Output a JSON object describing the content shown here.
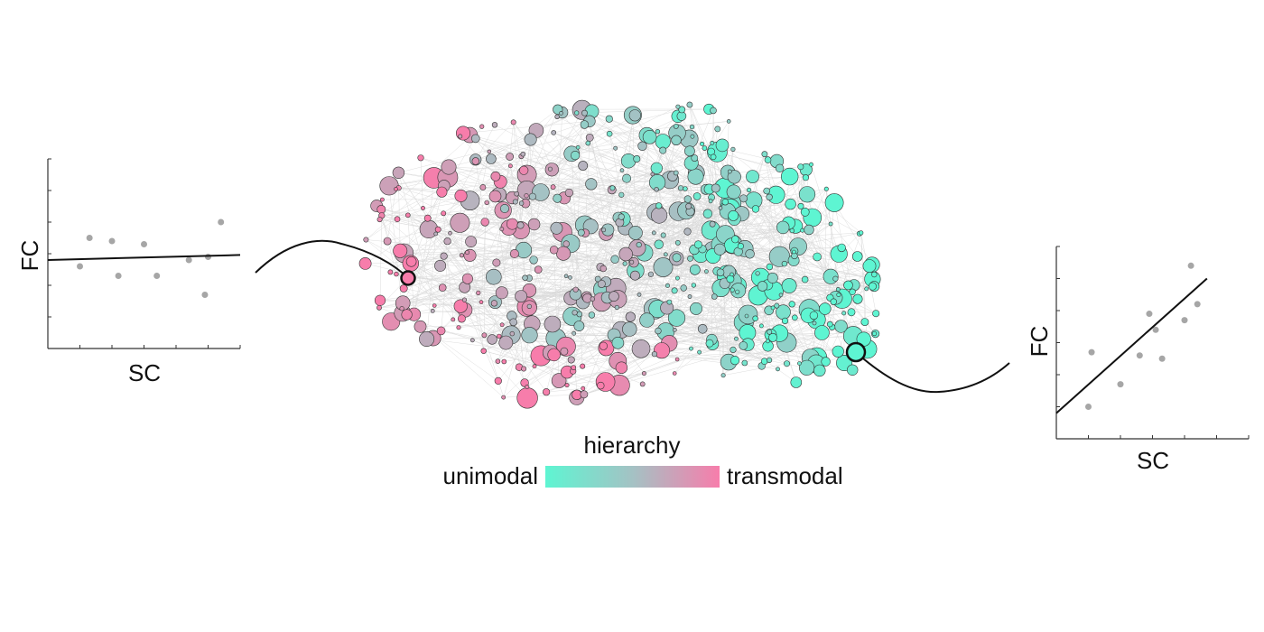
{
  "colors": {
    "unimodal": "#5ef5d2",
    "mid": "#a4c2c4",
    "transmodal": "#f77dab",
    "edge": "#d9d9d9",
    "scatter_point": "#a6a6a6",
    "line": "#111111"
  },
  "legend": {
    "title": "hierarchy",
    "left_label": "unimodal",
    "right_label": "transmodal"
  },
  "chart_data": [
    {
      "type": "scatter",
      "xlabel": "SC",
      "ylabel": "FC",
      "xlim": [
        0,
        6
      ],
      "ylim": [
        0,
        6
      ],
      "points": [
        [
          1.0,
          2.6
        ],
        [
          1.3,
          3.5
        ],
        [
          2.0,
          3.4
        ],
        [
          2.2,
          2.3
        ],
        [
          3.0,
          3.3
        ],
        [
          3.4,
          2.3
        ],
        [
          4.4,
          2.8
        ],
        [
          4.9,
          1.7
        ],
        [
          5.0,
          2.9
        ],
        [
          5.4,
          4.0
        ]
      ],
      "fit": {
        "x": [
          0,
          6
        ],
        "y": [
          2.8,
          2.96
        ]
      }
    },
    {
      "type": "scatter",
      "xlabel": "SC",
      "ylabel": "FC",
      "xlim": [
        0,
        6
      ],
      "ylim": [
        0,
        6
      ],
      "points": [
        [
          1.0,
          1.0
        ],
        [
          1.1,
          2.7
        ],
        [
          2.0,
          1.7
        ],
        [
          2.6,
          2.6
        ],
        [
          2.9,
          3.9
        ],
        [
          3.1,
          3.4
        ],
        [
          3.3,
          2.5
        ],
        [
          4.0,
          3.7
        ],
        [
          4.2,
          5.4
        ],
        [
          4.4,
          4.2
        ]
      ],
      "fit": {
        "x": [
          0,
          4.7
        ],
        "y": [
          0.8,
          5.0
        ]
      }
    }
  ]
}
